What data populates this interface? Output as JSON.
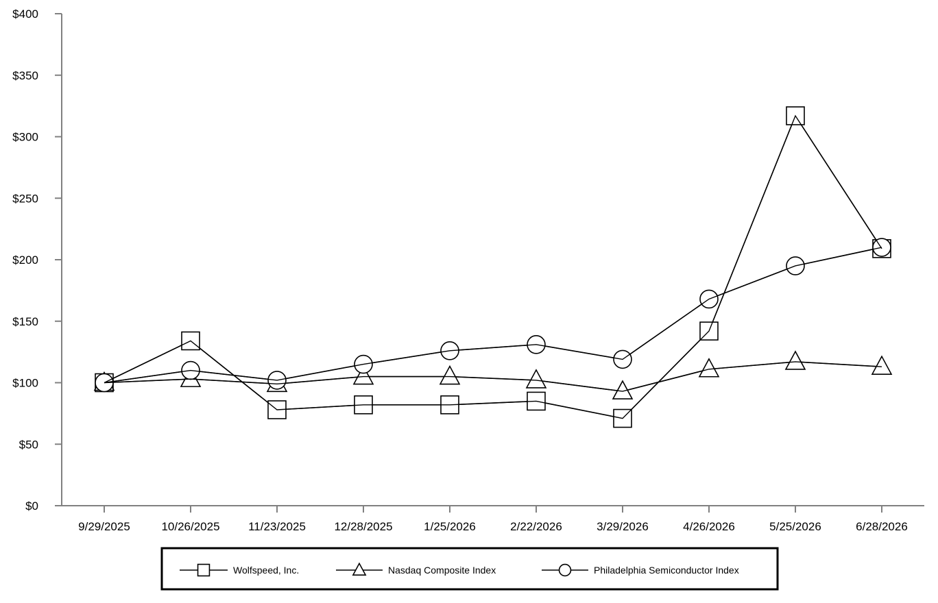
{
  "chart_data": {
    "type": "line",
    "title": "",
    "xlabel": "",
    "ylabel": "",
    "categories": [
      "9/29/2025",
      "10/26/2025",
      "11/23/2025",
      "12/28/2025",
      "1/25/2026",
      "2/22/2026",
      "3/29/2026",
      "4/26/2026",
      "5/25/2026",
      "6/28/2026"
    ],
    "ylim": [
      0,
      400
    ],
    "yticks": [
      0,
      50,
      100,
      150,
      200,
      250,
      300,
      350,
      400
    ],
    "ytick_labels": [
      "$0",
      "$50",
      "$100",
      "$150",
      "$200",
      "$250",
      "$300",
      "$350",
      "$400"
    ],
    "grid": false,
    "legend_position": "bottom",
    "series": [
      {
        "name": "Wolfspeed, Inc.",
        "marker": "square",
        "values": [
          100,
          134,
          78,
          82,
          82,
          85,
          71,
          142,
          317,
          209
        ]
      },
      {
        "name": "Nasdaq Composite Index",
        "marker": "triangle",
        "values": [
          100,
          103,
          99,
          105,
          105,
          102,
          93,
          111,
          117,
          113
        ]
      },
      {
        "name": "Philadelphia Semiconductor Index",
        "marker": "circle",
        "values": [
          100,
          110,
          102,
          115,
          126,
          131,
          119,
          168,
          195,
          210
        ]
      }
    ],
    "colors": {
      "line": "#000000",
      "axis": "#808080",
      "marker_fill": "#ffffff"
    }
  }
}
